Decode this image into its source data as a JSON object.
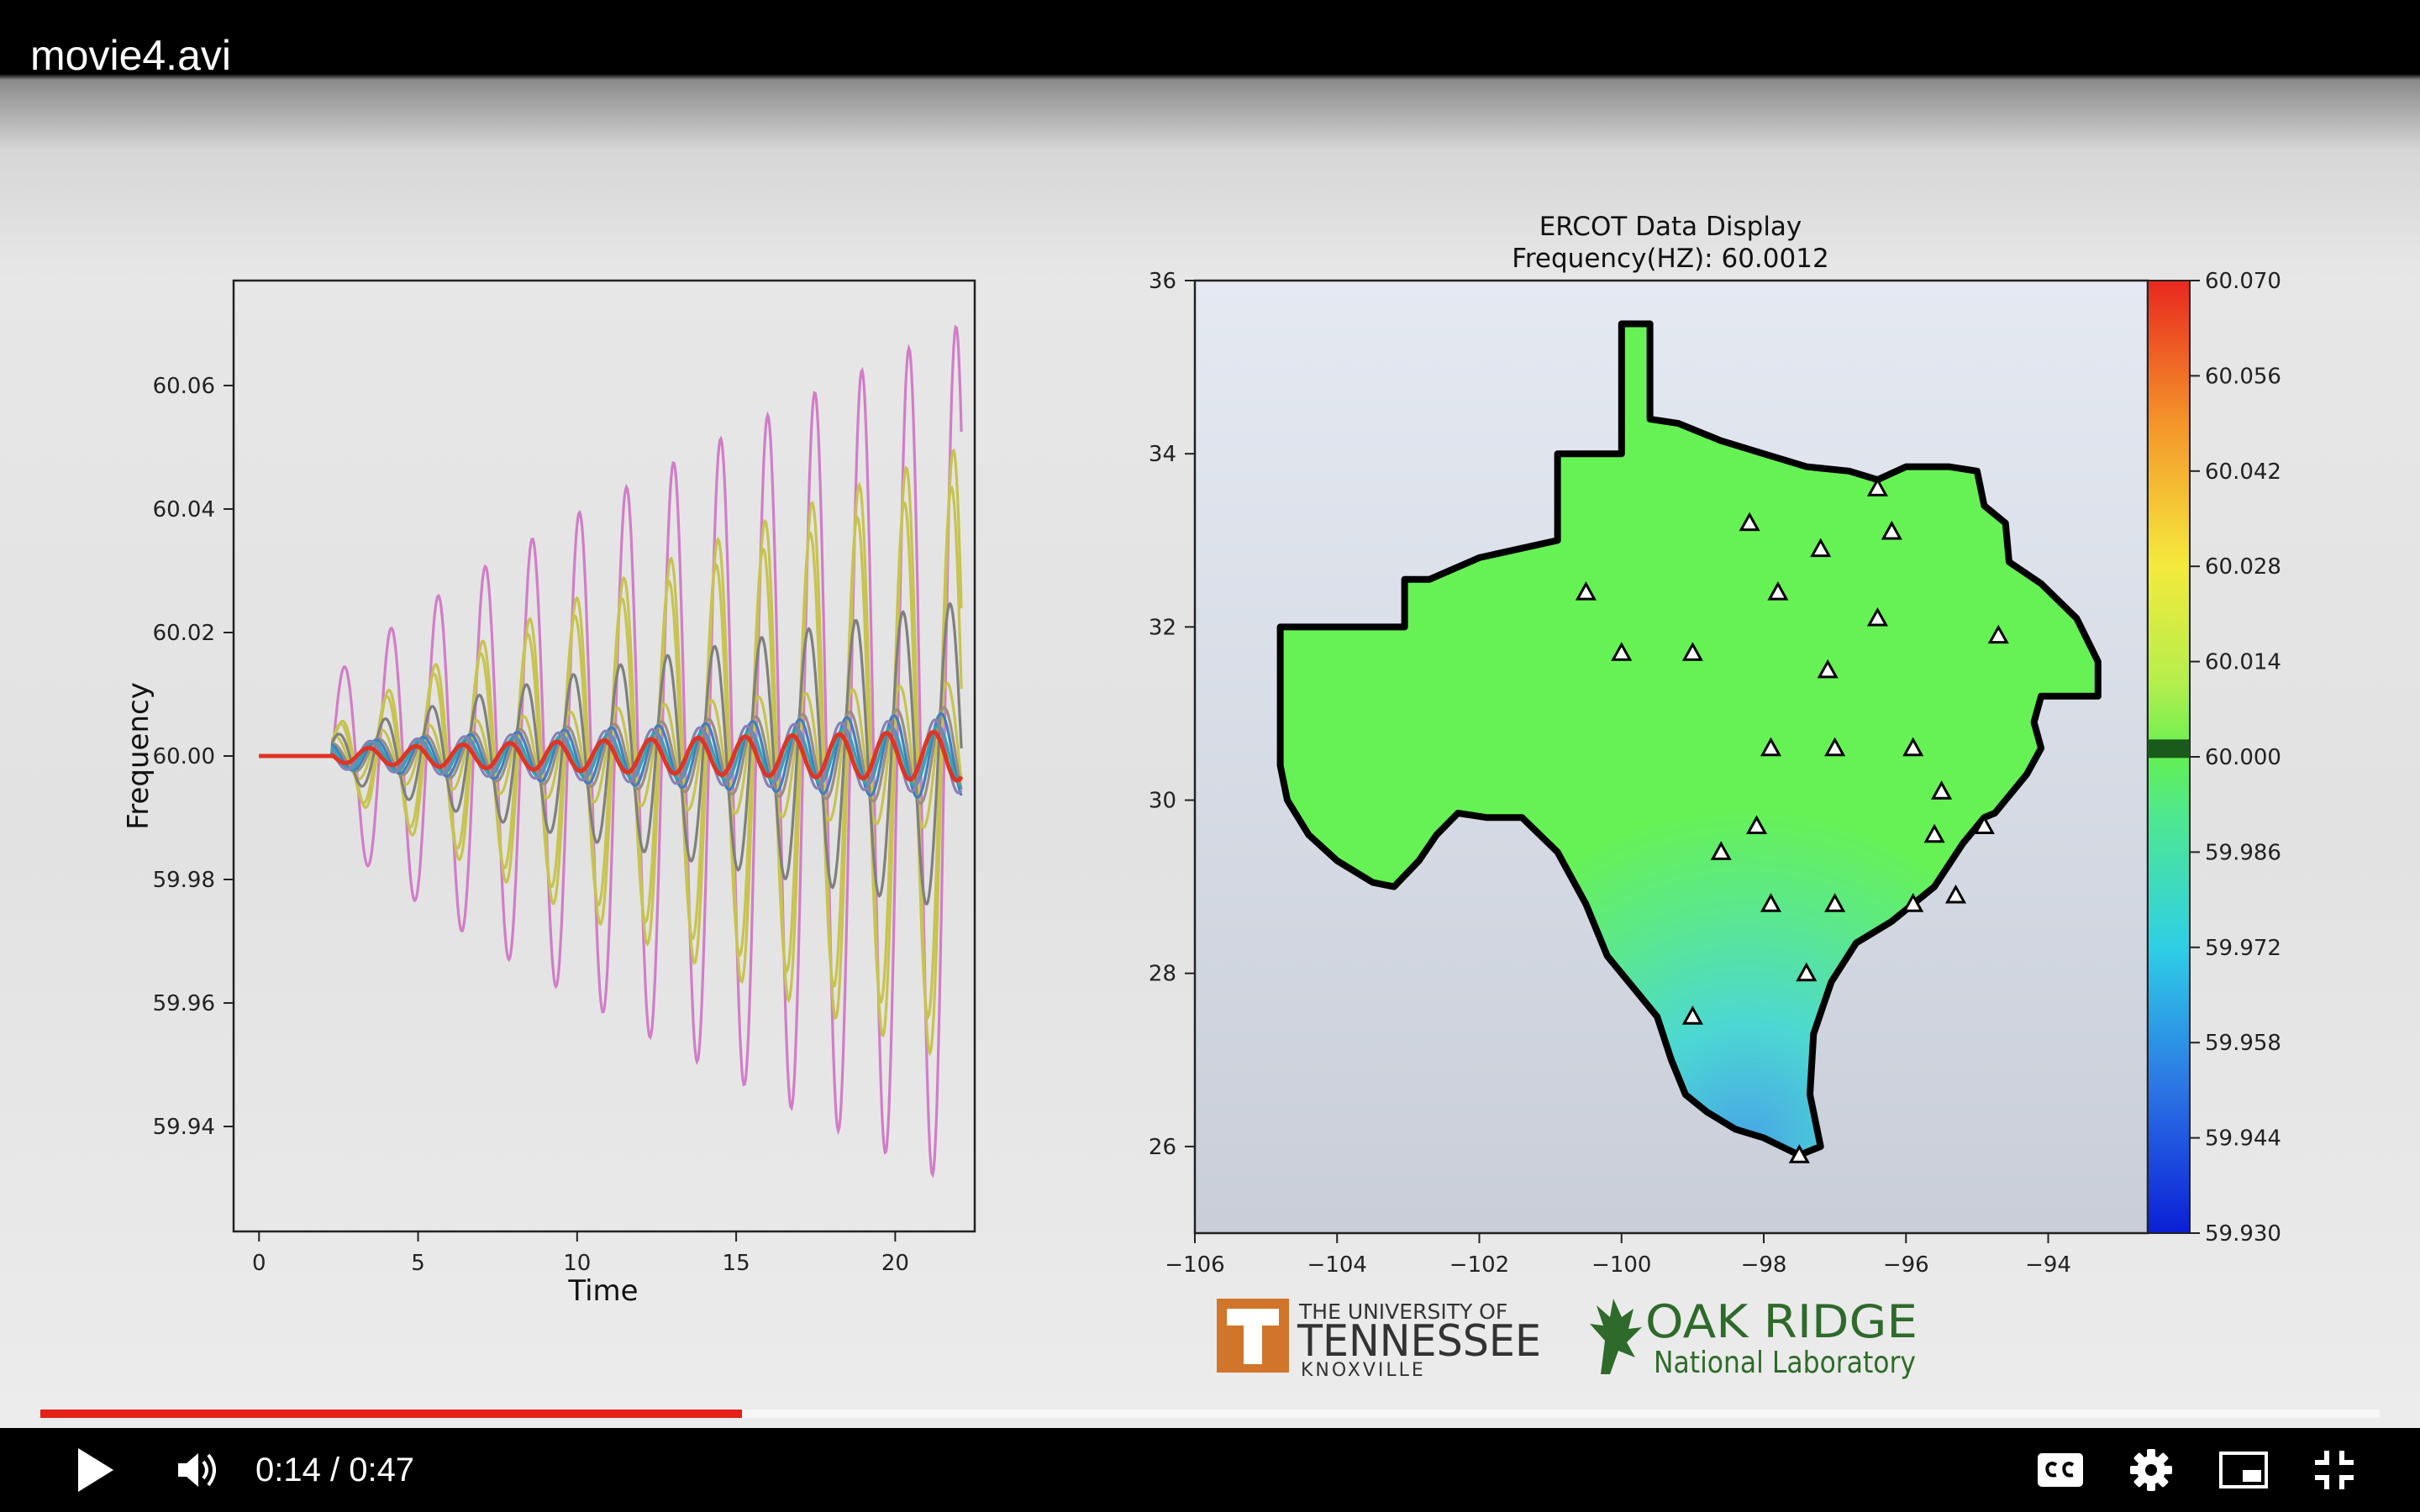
{
  "window": {
    "title": "movie4.avi"
  },
  "player": {
    "current_time": "0:14",
    "separator": " / ",
    "duration": "0:47",
    "progress": 0.3,
    "controls": {
      "play": "play-icon",
      "volume": "volume-icon",
      "captions": "captions-icon",
      "settings": "gear-icon",
      "miniplayer": "miniplayer-icon",
      "fullscreen": "exit-fullscreen-icon"
    }
  },
  "logos": {
    "utk_line1": "THE UNIVERSITY OF",
    "utk_line2": "TENNESSEE",
    "utk_line3": "KNOXVILLE",
    "ornl_line1": "OAK RIDGE",
    "ornl_line2": "National Laboratory"
  },
  "chart_data": [
    {
      "type": "line",
      "title": "",
      "xlabel": "Time",
      "ylabel": "Frequency",
      "xlim": [
        -0.8,
        22.5
      ],
      "ylim": [
        59.923,
        60.077
      ],
      "xticks": [
        0,
        5,
        10,
        15,
        20
      ],
      "yticks": [
        59.94,
        59.96,
        59.98,
        60.0,
        60.02,
        60.04,
        60.06
      ],
      "ytick_labels": [
        "59.94",
        "59.96",
        "59.98",
        "60.00",
        "60.02",
        "60.04",
        "60.06"
      ],
      "grid": false,
      "series_params": [
        {
          "color": "#d17dc8",
          "amp0": 0.012,
          "amp1": 0.07,
          "period": 1.48,
          "phase": 0.0
        },
        {
          "color": "#c7c350",
          "amp0": 0.004,
          "amp1": 0.05,
          "period": 1.48,
          "phase": 0.35
        },
        {
          "color": "#c7c350",
          "amp0": 0.004,
          "amp1": 0.044,
          "period": 1.48,
          "phase": 0.6
        },
        {
          "color": "#c7c350",
          "amp0": 0.003,
          "amp1": 0.012,
          "period": 1.48,
          "phase": 1.2
        },
        {
          "color": "#7f7f7f",
          "amp0": 0.003,
          "amp1": 0.025,
          "period": 1.48,
          "phase": 0.8
        },
        {
          "color": "#9b8e7e",
          "amp0": 0.002,
          "amp1": 0.008,
          "period": 1.48,
          "phase": 1.6
        },
        {
          "color": "#3f7fc0",
          "amp0": 0.002,
          "amp1": 0.007,
          "period": 1.48,
          "phase": 2.0
        },
        {
          "color": "#2ca6b0",
          "amp0": 0.002,
          "amp1": 0.005,
          "period": 1.48,
          "phase": 2.4
        },
        {
          "color": "#8a7fb5",
          "amp0": 0.002,
          "amp1": 0.006,
          "period": 1.48,
          "phase": 2.8
        },
        {
          "color": "#e03424",
          "amp0": 0.001,
          "amp1": 0.004,
          "period": 1.48,
          "phase": 3.0
        }
      ],
      "start_time": 2.3
    },
    {
      "type": "heatmap",
      "title": "ERCOT Data Display",
      "subtitle_prefix": "Frequency(HZ): ",
      "frequency": "60.0012",
      "xlim": [
        -106,
        -92.6
      ],
      "ylim": [
        25,
        36
      ],
      "xticks": [
        -106,
        -104,
        -102,
        -100,
        -98,
        -96,
        -94
      ],
      "xtick_labels": [
        "−106",
        "−104",
        "−102",
        "−100",
        "−98",
        "−96",
        "−94"
      ],
      "yticks": [
        26,
        28,
        30,
        32,
        34,
        36
      ],
      "colorbar": {
        "min": 59.93,
        "max": 60.07,
        "tick_labels": [
          "60.070",
          "60.056",
          "60.042",
          "60.028",
          "60.014",
          "60.000",
          "59.986",
          "59.972",
          "59.958",
          "59.944",
          "59.930"
        ],
        "marker_value": 60.0012
      },
      "stations": [
        [
          -96.4,
          33.6
        ],
        [
          -98.2,
          33.2
        ],
        [
          -97.2,
          32.9
        ],
        [
          -96.2,
          33.1
        ],
        [
          -100.5,
          32.4
        ],
        [
          -97.8,
          32.4
        ],
        [
          -96.4,
          32.1
        ],
        [
          -94.7,
          31.9
        ],
        [
          -100.0,
          31.7
        ],
        [
          -99.0,
          31.7
        ],
        [
          -97.1,
          31.5
        ],
        [
          -97.9,
          30.6
        ],
        [
          -97.0,
          30.6
        ],
        [
          -95.9,
          30.6
        ],
        [
          -95.5,
          30.1
        ],
        [
          -94.9,
          29.7
        ],
        [
          -95.6,
          29.6
        ],
        [
          -98.1,
          29.7
        ],
        [
          -98.6,
          29.4
        ],
        [
          -97.9,
          28.8
        ],
        [
          -97.0,
          28.8
        ],
        [
          -95.9,
          28.8
        ],
        [
          -95.3,
          28.9
        ],
        [
          -97.4,
          28.0
        ],
        [
          -99.0,
          27.5
        ],
        [
          -97.5,
          25.9
        ]
      ]
    }
  ]
}
